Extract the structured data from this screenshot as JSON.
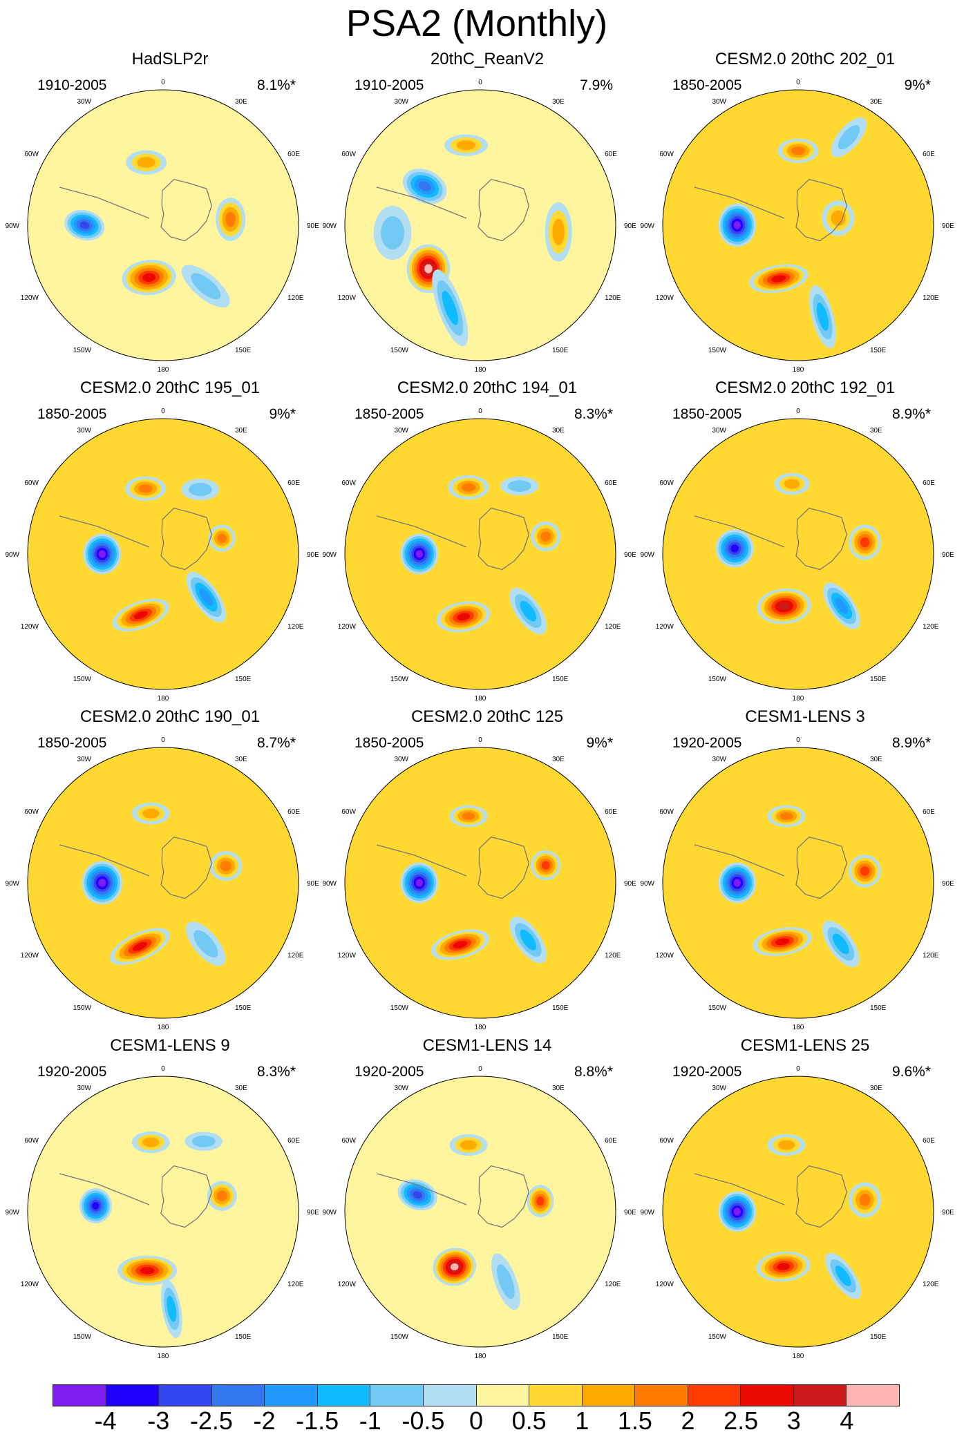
{
  "figure": {
    "title": "PSA2 (Monthly)"
  },
  "lon_labels": [
    "0",
    "30E",
    "60E",
    "90E",
    "120E",
    "150E",
    "180",
    "150W",
    "120W",
    "90W",
    "60W",
    "30W"
  ],
  "colors": [
    "#7f1cf2",
    "#2200ff",
    "#3346f0",
    "#3377f0",
    "#2299ff",
    "#11bbff",
    "#72c9f3",
    "#b2def3",
    "#fff59e",
    "#ffd831",
    "#ffaa00",
    "#ff7c00",
    "#ff3a00",
    "#ea0800",
    "#cc1a1a",
    "#ffb4b4"
  ],
  "colorbar": {
    "labels": [
      "-4",
      "-3",
      "-2.5",
      "-2",
      "-1.5",
      "-1",
      "-0.5",
      "0",
      "0.5",
      "1",
      "1.5",
      "2",
      "2.5",
      "3",
      "4"
    ]
  },
  "panels": [
    {
      "title": "HadSLP2r",
      "period": "1910-2005",
      "pct": "8.1%*",
      "bg": 0.4,
      "blobs": [
        {
          "r": 0.58,
          "a": 270,
          "rx": 0.15,
          "ry": 0.11,
          "v": -2.7,
          "rot": 15
        },
        {
          "r": 0.4,
          "a": 195,
          "rx": 0.2,
          "ry": 0.13,
          "v": 2.8,
          "rot": -5
        },
        {
          "r": 0.48,
          "a": 345,
          "rx": 0.15,
          "ry": 0.09,
          "v": 1.4,
          "rot": 0
        },
        {
          "r": 0.5,
          "a": 85,
          "rx": 0.11,
          "ry": 0.16,
          "v": 1.6,
          "rot": 0
        },
        {
          "r": 0.55,
          "a": 145,
          "rx": 0.22,
          "ry": 0.09,
          "v": -0.8,
          "rot": 40
        }
      ]
    },
    {
      "title": "20thC_ReanV2",
      "period": "1910-2005",
      "pct": "7.9%",
      "bg": 0.4,
      "blobs": [
        {
          "r": 0.5,
          "a": 305,
          "rx": 0.17,
          "ry": 0.12,
          "v": -2.1,
          "rot": 25
        },
        {
          "r": 0.5,
          "a": 230,
          "rx": 0.16,
          "ry": 0.18,
          "v": 4.2,
          "rot": 0
        },
        {
          "r": 0.6,
          "a": 350,
          "rx": 0.16,
          "ry": 0.08,
          "v": 1.2,
          "rot": 0
        },
        {
          "r": 0.58,
          "a": 95,
          "rx": 0.1,
          "ry": 0.22,
          "v": 1.2,
          "rot": 0
        },
        {
          "r": 0.65,
          "a": 200,
          "rx": 0.3,
          "ry": 0.09,
          "v": -1.2,
          "rot": 70
        },
        {
          "r": 0.65,
          "a": 265,
          "rx": 0.14,
          "ry": 0.2,
          "v": -0.8,
          "rot": 0
        }
      ]
    },
    {
      "title": "CESM2.0 20thC 202_01",
      "period": "1850-2005",
      "pct": "9%*",
      "bg": 0.7,
      "blobs": [
        {
          "r": 0.45,
          "a": 270,
          "rx": 0.14,
          "ry": 0.16,
          "v": -4.3,
          "rot": 0
        },
        {
          "r": 0.42,
          "a": 200,
          "rx": 0.22,
          "ry": 0.1,
          "v": 2.7,
          "rot": -10
        },
        {
          "r": 0.55,
          "a": 0,
          "rx": 0.15,
          "ry": 0.09,
          "v": 1.7,
          "rot": 0
        },
        {
          "r": 0.3,
          "a": 80,
          "rx": 0.12,
          "ry": 0.13,
          "v": 1.2,
          "rot": 0
        },
        {
          "r": 0.7,
          "a": 165,
          "rx": 0.24,
          "ry": 0.08,
          "v": -1.3,
          "rot": 75
        },
        {
          "r": 0.75,
          "a": 30,
          "rx": 0.18,
          "ry": 0.08,
          "v": -1.0,
          "rot": -50
        }
      ]
    },
    {
      "title": "CESM2.0 20thC 195_01",
      "period": "1850-2005",
      "pct": "9%*",
      "bg": 0.5,
      "blobs": [
        {
          "r": 0.45,
          "a": 270,
          "rx": 0.14,
          "ry": 0.15,
          "v": -4.3,
          "rot": 0
        },
        {
          "r": 0.48,
          "a": 200,
          "rx": 0.22,
          "ry": 0.1,
          "v": 2.7,
          "rot": -20
        },
        {
          "r": 0.5,
          "a": 345,
          "rx": 0.15,
          "ry": 0.09,
          "v": 1.9,
          "rot": 0
        },
        {
          "r": 0.45,
          "a": 75,
          "rx": 0.1,
          "ry": 0.1,
          "v": 1.6,
          "rot": 0
        },
        {
          "r": 0.45,
          "a": 135,
          "rx": 0.22,
          "ry": 0.09,
          "v": -1.6,
          "rot": 55
        },
        {
          "r": 0.55,
          "a": 30,
          "rx": 0.14,
          "ry": 0.08,
          "v": -0.8,
          "rot": 0
        }
      ]
    },
    {
      "title": "CESM2.0 20thC 194_01",
      "period": "1850-2005",
      "pct": "8.3%*",
      "bg": 0.5,
      "blobs": [
        {
          "r": 0.45,
          "a": 270,
          "rx": 0.14,
          "ry": 0.15,
          "v": -4.2,
          "rot": 0
        },
        {
          "r": 0.48,
          "a": 195,
          "rx": 0.2,
          "ry": 0.11,
          "v": 2.7,
          "rot": -10
        },
        {
          "r": 0.5,
          "a": 350,
          "rx": 0.15,
          "ry": 0.09,
          "v": 1.7,
          "rot": 0
        },
        {
          "r": 0.5,
          "a": 75,
          "rx": 0.11,
          "ry": 0.11,
          "v": 2.0,
          "rot": 0
        },
        {
          "r": 0.55,
          "a": 140,
          "rx": 0.2,
          "ry": 0.09,
          "v": -1.2,
          "rot": 55
        },
        {
          "r": 0.58,
          "a": 30,
          "rx": 0.14,
          "ry": 0.07,
          "v": -0.8,
          "rot": 0
        }
      ]
    },
    {
      "title": "CESM2.0 20thC 192_01",
      "period": "1850-2005",
      "pct": "8.9%*",
      "bg": 0.5,
      "blobs": [
        {
          "r": 0.47,
          "a": 275,
          "rx": 0.14,
          "ry": 0.14,
          "v": -3.7,
          "rot": 0
        },
        {
          "r": 0.4,
          "a": 195,
          "rx": 0.2,
          "ry": 0.13,
          "v": 3.1,
          "rot": -5
        },
        {
          "r": 0.52,
          "a": 355,
          "rx": 0.13,
          "ry": 0.08,
          "v": 1.5,
          "rot": 0
        },
        {
          "r": 0.5,
          "a": 80,
          "rx": 0.12,
          "ry": 0.13,
          "v": 2.4,
          "rot": 0
        },
        {
          "r": 0.5,
          "a": 140,
          "rx": 0.2,
          "ry": 0.09,
          "v": -1.6,
          "rot": 55
        }
      ]
    },
    {
      "title": "CESM2.0 20thC 190_01",
      "period": "1850-2005",
      "pct": "8.7%*",
      "bg": 0.5,
      "blobs": [
        {
          "r": 0.45,
          "a": 270,
          "rx": 0.15,
          "ry": 0.16,
          "v": -4.4,
          "rot": 0
        },
        {
          "r": 0.5,
          "a": 200,
          "rx": 0.24,
          "ry": 0.1,
          "v": 2.6,
          "rot": -25
        },
        {
          "r": 0.52,
          "a": 350,
          "rx": 0.14,
          "ry": 0.08,
          "v": 1.3,
          "rot": 0
        },
        {
          "r": 0.48,
          "a": 75,
          "rx": 0.12,
          "ry": 0.11,
          "v": 1.7,
          "rot": 0
        },
        {
          "r": 0.55,
          "a": 145,
          "rx": 0.2,
          "ry": 0.09,
          "v": -0.9,
          "rot": 50
        }
      ]
    },
    {
      "title": "CESM2.0 20thC 125",
      "period": "1850-2005",
      "pct": "9%*",
      "bg": 0.5,
      "blobs": [
        {
          "r": 0.45,
          "a": 270,
          "rx": 0.14,
          "ry": 0.15,
          "v": -4.3,
          "rot": 0
        },
        {
          "r": 0.48,
          "a": 198,
          "rx": 0.22,
          "ry": 0.1,
          "v": 2.8,
          "rot": -15
        },
        {
          "r": 0.5,
          "a": 350,
          "rx": 0.14,
          "ry": 0.08,
          "v": 1.6,
          "rot": 0
        },
        {
          "r": 0.5,
          "a": 75,
          "rx": 0.11,
          "ry": 0.11,
          "v": 2.3,
          "rot": 0
        },
        {
          "r": 0.55,
          "a": 140,
          "rx": 0.2,
          "ry": 0.09,
          "v": -1.2,
          "rot": 55
        }
      ]
    },
    {
      "title": "CESM1-LENS 3",
      "period": "1920-2005",
      "pct": "8.9%*",
      "bg": 0.5,
      "blobs": [
        {
          "r": 0.45,
          "a": 270,
          "rx": 0.14,
          "ry": 0.15,
          "v": -4.1,
          "rot": 0
        },
        {
          "r": 0.45,
          "a": 195,
          "rx": 0.22,
          "ry": 0.1,
          "v": 2.8,
          "rot": -10
        },
        {
          "r": 0.5,
          "a": 350,
          "rx": 0.14,
          "ry": 0.08,
          "v": 1.7,
          "rot": 0
        },
        {
          "r": 0.5,
          "a": 80,
          "rx": 0.12,
          "ry": 0.12,
          "v": 2.3,
          "rot": 0
        },
        {
          "r": 0.55,
          "a": 145,
          "rx": 0.2,
          "ry": 0.09,
          "v": -1.2,
          "rot": 55
        }
      ]
    },
    {
      "title": "CESM1-LENS 9",
      "period": "1920-2005",
      "pct": "8.3%*",
      "bg": 0.4,
      "blobs": [
        {
          "r": 0.5,
          "a": 275,
          "rx": 0.12,
          "ry": 0.13,
          "v": -4.0,
          "rot": 0
        },
        {
          "r": 0.45,
          "a": 195,
          "rx": 0.22,
          "ry": 0.11,
          "v": 2.9,
          "rot": 0
        },
        {
          "r": 0.52,
          "a": 350,
          "rx": 0.14,
          "ry": 0.08,
          "v": 1.3,
          "rot": 0
        },
        {
          "r": 0.45,
          "a": 75,
          "rx": 0.11,
          "ry": 0.11,
          "v": 2.0,
          "rot": 0
        },
        {
          "r": 0.72,
          "a": 175,
          "rx": 0.22,
          "ry": 0.07,
          "v": -1.2,
          "rot": 80
        },
        {
          "r": 0.6,
          "a": 30,
          "rx": 0.14,
          "ry": 0.07,
          "v": -0.8,
          "rot": 0
        }
      ]
    },
    {
      "title": "CESM1-LENS 14",
      "period": "1920-2005",
      "pct": "8.8%*",
      "bg": 0.4,
      "blobs": [
        {
          "r": 0.48,
          "a": 285,
          "rx": 0.15,
          "ry": 0.11,
          "v": -2.9,
          "rot": 20
        },
        {
          "r": 0.45,
          "a": 205,
          "rx": 0.16,
          "ry": 0.14,
          "v": 4.3,
          "rot": -10
        },
        {
          "r": 0.5,
          "a": 350,
          "rx": 0.14,
          "ry": 0.08,
          "v": 1.4,
          "rot": 0
        },
        {
          "r": 0.45,
          "a": 80,
          "rx": 0.1,
          "ry": 0.12,
          "v": 2.1,
          "rot": 0
        },
        {
          "r": 0.55,
          "a": 160,
          "rx": 0.22,
          "ry": 0.08,
          "v": -1.0,
          "rot": 70
        }
      ]
    },
    {
      "title": "CESM1-LENS 25",
      "period": "1920-2005",
      "pct": "9.6%*",
      "bg": 0.5,
      "blobs": [
        {
          "r": 0.45,
          "a": 270,
          "rx": 0.14,
          "ry": 0.15,
          "v": -4.1,
          "rot": 0
        },
        {
          "r": 0.42,
          "a": 195,
          "rx": 0.2,
          "ry": 0.11,
          "v": 3.0,
          "rot": -5
        },
        {
          "r": 0.5,
          "a": 350,
          "rx": 0.14,
          "ry": 0.08,
          "v": 1.5,
          "rot": 0
        },
        {
          "r": 0.5,
          "a": 80,
          "rx": 0.12,
          "ry": 0.13,
          "v": 2.0,
          "rot": 0
        },
        {
          "r": 0.58,
          "a": 145,
          "rx": 0.2,
          "ry": 0.08,
          "v": -1.2,
          "rot": 55
        }
      ]
    }
  ]
}
